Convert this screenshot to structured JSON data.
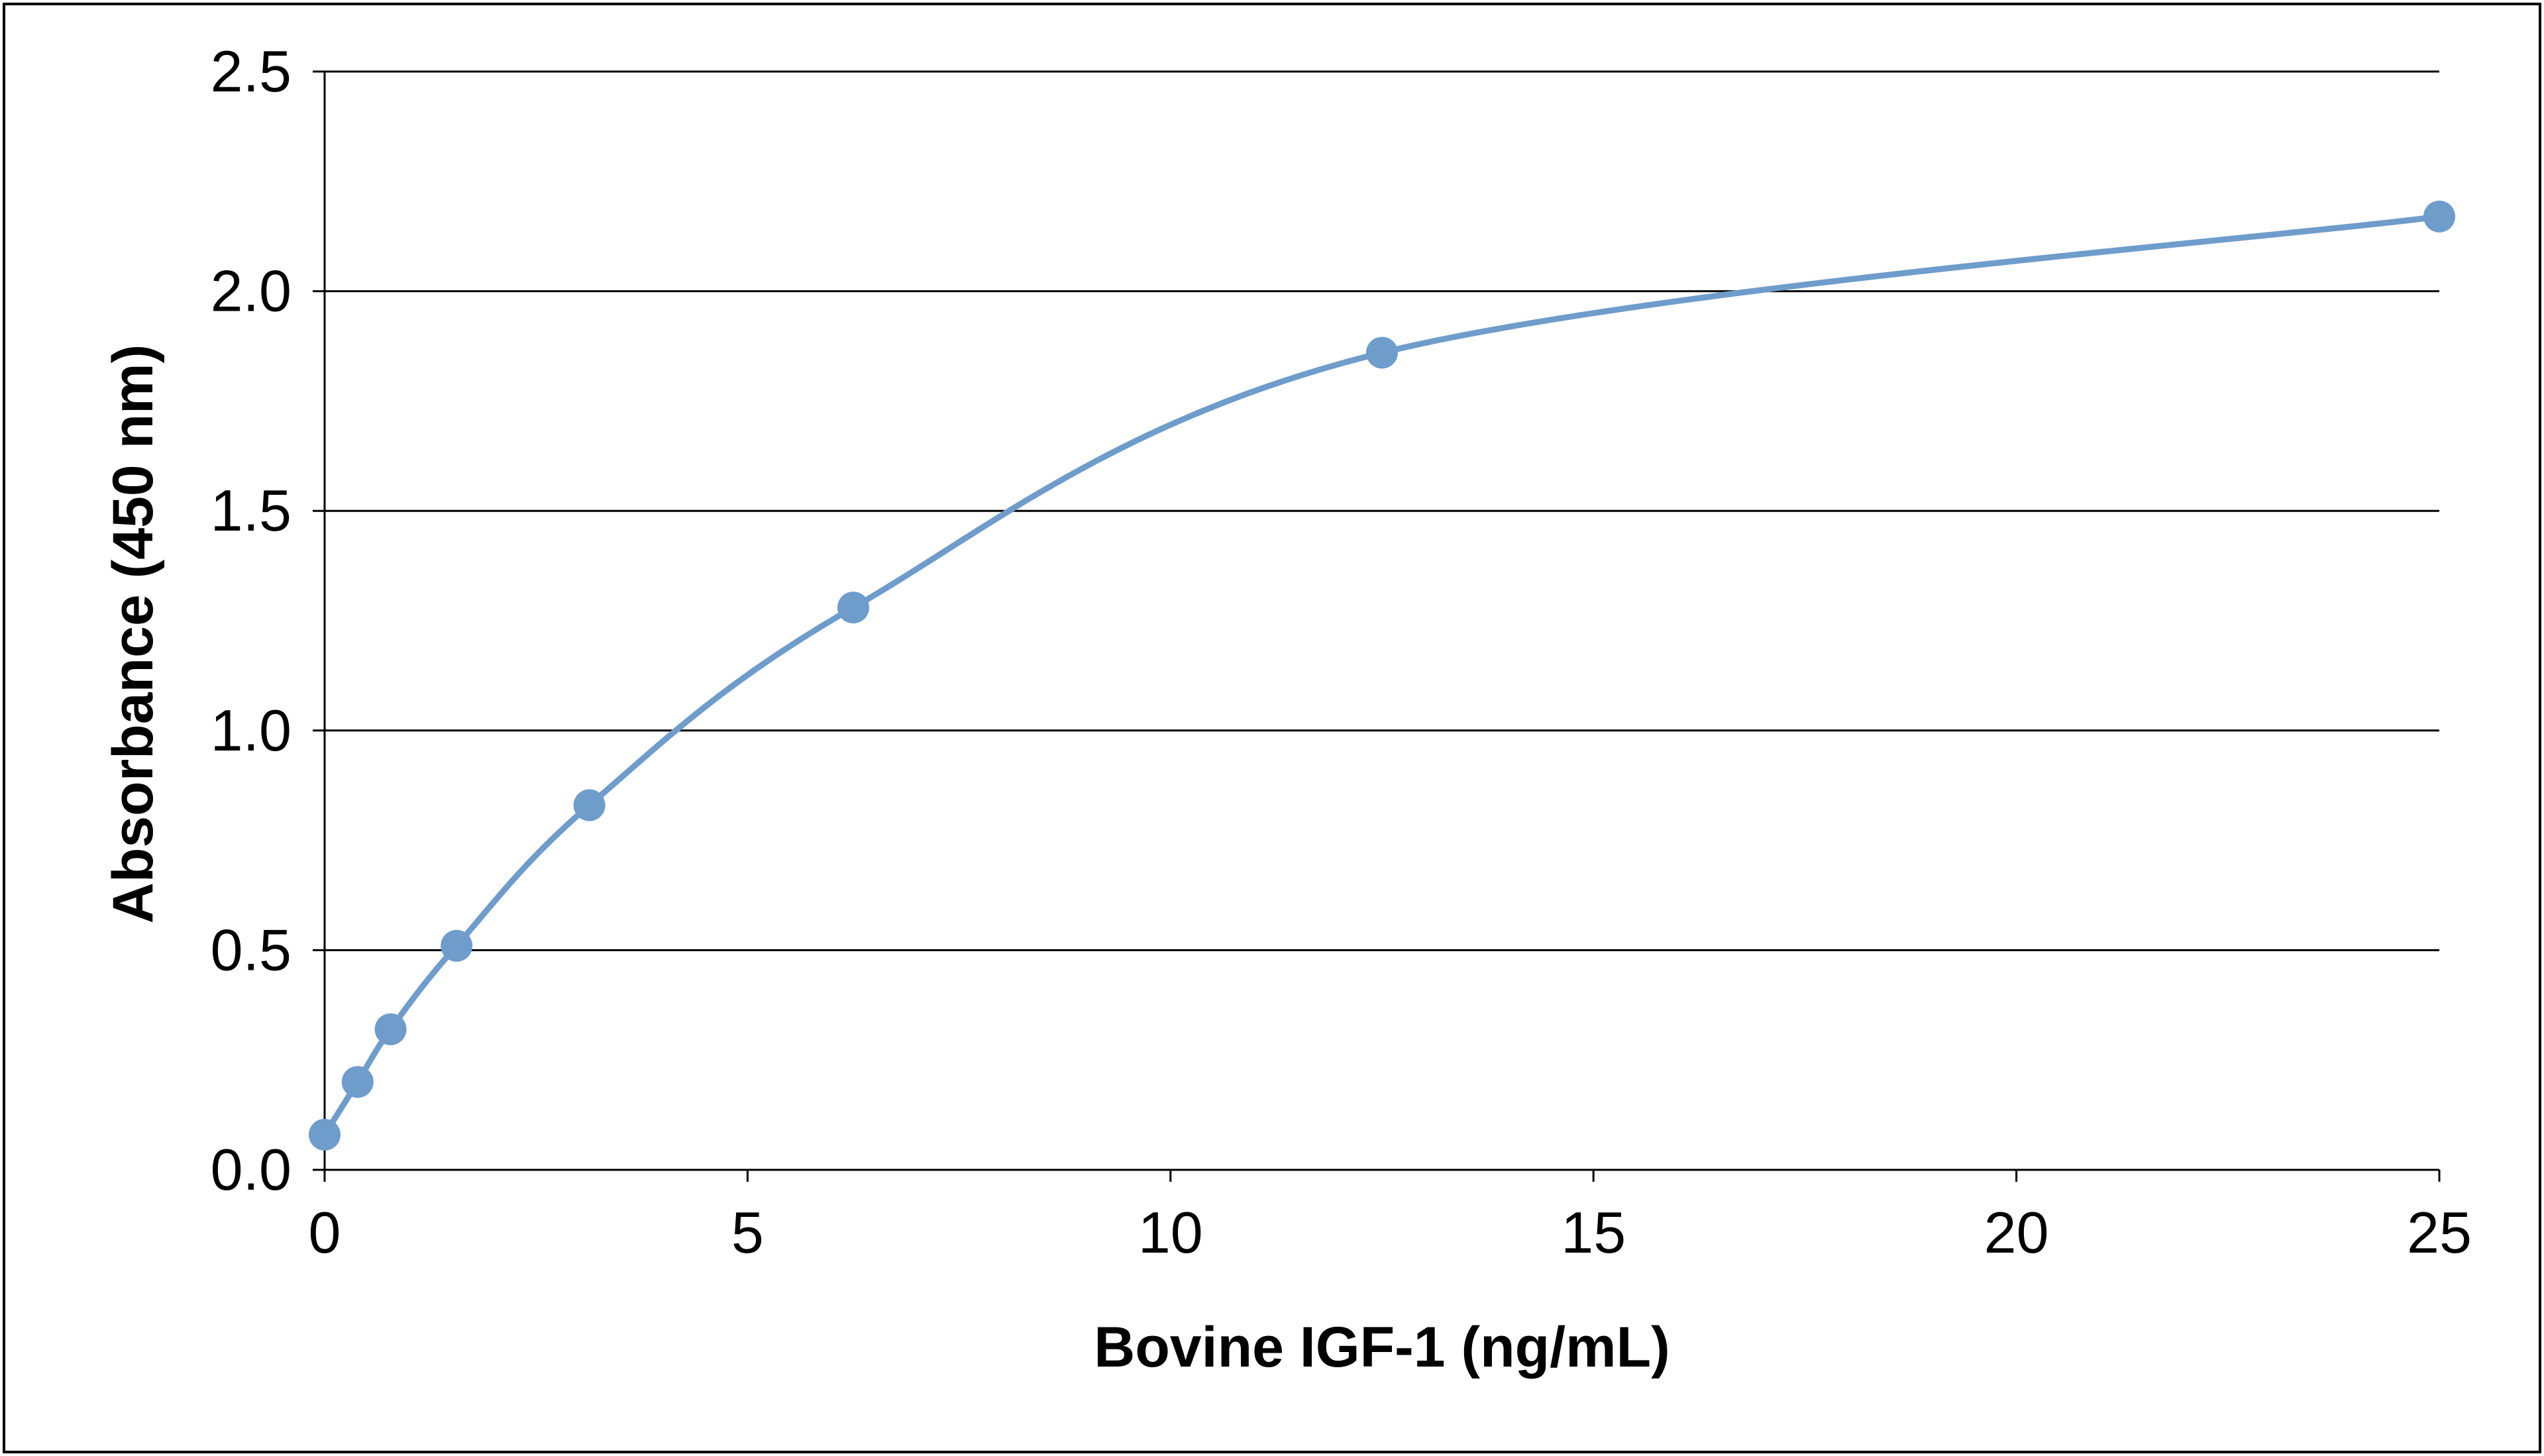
{
  "chart_data": {
    "type": "scatter",
    "title": "",
    "xlabel": "Bovine IGF-1 (ng/mL)",
    "ylabel": "Absorbance  (450 nm)",
    "xlim": [
      0,
      25
    ],
    "ylim": [
      0,
      2.5
    ],
    "x_ticks": [
      "0",
      "5",
      "10",
      "15",
      "20",
      "25"
    ],
    "y_ticks": [
      "0.0",
      "0.5",
      "1.0",
      "1.5",
      "2.0",
      "2.5"
    ],
    "grid": "horizontal",
    "legend": "none",
    "series": [
      {
        "color": "#6e9ccb",
        "marker": "circle",
        "line": "smoothed",
        "points": [
          {
            "x": 0,
            "y": 0.08
          },
          {
            "x": 0.39,
            "y": 0.2
          },
          {
            "x": 0.78,
            "y": 0.32
          },
          {
            "x": 1.56,
            "y": 0.51
          },
          {
            "x": 3.13,
            "y": 0.83
          },
          {
            "x": 6.25,
            "y": 1.28
          },
          {
            "x": 12.5,
            "y": 1.86
          },
          {
            "x": 25,
            "y": 2.17
          }
        ]
      }
    ]
  }
}
